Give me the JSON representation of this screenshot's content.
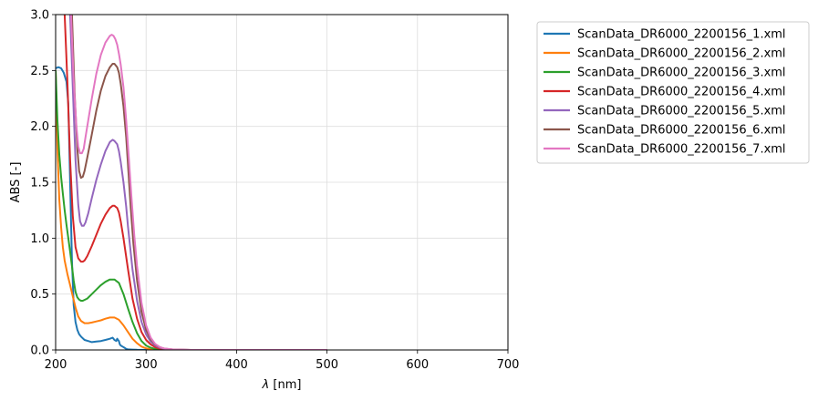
{
  "chart_data": {
    "type": "line",
    "xlabel_symbol": "λ",
    "xlabel_unit": " [nm]",
    "ylabel": "ABS [-]",
    "xlim": [
      200,
      700
    ],
    "ylim": [
      0,
      3.0
    ],
    "grid": true,
    "legend_placement": "outside-upper-right",
    "x_ticks": [
      "200",
      "300",
      "400",
      "500",
      "600",
      "700"
    ],
    "y_ticks": [
      "0.0",
      "0.5",
      "1.0",
      "1.5",
      "2.0",
      "2.5",
      "3.0"
    ],
    "series": [
      {
        "name": "ScanData_DR6000_2200156_1.xml",
        "color": "#1f77b4",
        "x": [
          200,
          203,
          206,
          209,
          212,
          214,
          216,
          218,
          220,
          222,
          224,
          226,
          228,
          232,
          236,
          240,
          245,
          250,
          255,
          260,
          263,
          265,
          267,
          268,
          269,
          270,
          271,
          272,
          274,
          276,
          278,
          280,
          285,
          290,
          300,
          350,
          400,
          500
        ],
        "y": [
          2.52,
          2.53,
          2.52,
          2.48,
          2.4,
          2.2,
          1.5,
          0.8,
          0.4,
          0.25,
          0.18,
          0.14,
          0.12,
          0.09,
          0.08,
          0.07,
          0.075,
          0.08,
          0.09,
          0.1,
          0.11,
          0.09,
          0.08,
          0.1,
          0.09,
          0.08,
          0.05,
          0.04,
          0.03,
          0.02,
          0.01,
          0.005,
          0.003,
          0.002,
          0.001,
          0.0,
          0.0,
          0.0
        ]
      },
      {
        "name": "ScanData_DR6000_2200156_2.xml",
        "color": "#ff7f0e",
        "x": [
          200,
          202,
          204,
          206,
          208,
          210,
          213,
          216,
          219,
          222,
          225,
          228,
          232,
          236,
          240,
          245,
          250,
          255,
          260,
          265,
          270,
          275,
          280,
          285,
          290,
          295,
          300,
          305,
          310,
          320,
          340,
          400,
          500
        ],
        "y": [
          2.5,
          1.8,
          1.35,
          1.1,
          0.92,
          0.8,
          0.68,
          0.58,
          0.48,
          0.38,
          0.3,
          0.26,
          0.24,
          0.24,
          0.245,
          0.255,
          0.265,
          0.28,
          0.29,
          0.29,
          0.27,
          0.22,
          0.16,
          0.1,
          0.06,
          0.03,
          0.015,
          0.008,
          0.004,
          0.002,
          0.0,
          0.0,
          0.0
        ]
      },
      {
        "name": "ScanData_DR6000_2200156_3.xml",
        "color": "#2ca02c",
        "x": [
          200,
          202,
          204,
          206,
          208,
          210,
          212,
          214,
          216,
          218,
          220,
          222,
          224,
          226,
          228,
          230,
          235,
          240,
          245,
          250,
          255,
          260,
          265,
          270,
          275,
          280,
          285,
          290,
          295,
          300,
          305,
          310,
          320,
          340,
          400,
          500
        ],
        "y": [
          2.5,
          2.05,
          1.75,
          1.55,
          1.4,
          1.25,
          1.12,
          1.0,
          0.88,
          0.75,
          0.62,
          0.52,
          0.47,
          0.45,
          0.44,
          0.44,
          0.46,
          0.5,
          0.54,
          0.58,
          0.61,
          0.63,
          0.63,
          0.6,
          0.5,
          0.37,
          0.25,
          0.15,
          0.08,
          0.04,
          0.02,
          0.01,
          0.004,
          0.0,
          0.0,
          0.0
        ]
      },
      {
        "name": "ScanData_DR6000_2200156_4.xml",
        "color": "#d62728",
        "x": [
          210,
          213,
          216,
          219,
          222,
          225,
          228,
          230,
          232,
          235,
          240,
          245,
          250,
          255,
          260,
          263,
          265,
          268,
          270,
          272,
          275,
          280,
          285,
          290,
          295,
          300,
          305,
          310,
          315,
          320,
          330,
          350,
          400,
          500
        ],
        "y": [
          3.0,
          2.4,
          1.7,
          1.2,
          0.92,
          0.82,
          0.79,
          0.79,
          0.8,
          0.84,
          0.93,
          1.03,
          1.13,
          1.21,
          1.27,
          1.29,
          1.29,
          1.27,
          1.23,
          1.15,
          1.0,
          0.72,
          0.46,
          0.28,
          0.16,
          0.09,
          0.05,
          0.025,
          0.012,
          0.006,
          0.002,
          0.0,
          0.0,
          0.0
        ]
      },
      {
        "name": "ScanData_DR6000_2200156_5.xml",
        "color": "#9467bd",
        "x": [
          216,
          219,
          222,
          225,
          227,
          229,
          231,
          233,
          236,
          240,
          245,
          250,
          255,
          260,
          263,
          265,
          268,
          270,
          272,
          275,
          278,
          280,
          285,
          290,
          295,
          300,
          305,
          310,
          315,
          320,
          330,
          350,
          400,
          500
        ],
        "y": [
          3.0,
          2.35,
          1.7,
          1.3,
          1.15,
          1.11,
          1.11,
          1.14,
          1.22,
          1.36,
          1.52,
          1.66,
          1.78,
          1.86,
          1.88,
          1.87,
          1.84,
          1.78,
          1.68,
          1.5,
          1.28,
          1.1,
          0.72,
          0.44,
          0.25,
          0.14,
          0.075,
          0.04,
          0.02,
          0.01,
          0.003,
          0.0,
          0.0,
          0.0
        ]
      },
      {
        "name": "ScanData_DR6000_2200156_6.xml",
        "color": "#8c564b",
        "x": [
          218,
          221,
          224,
          226,
          228,
          230,
          232,
          235,
          240,
          245,
          250,
          255,
          260,
          263,
          265,
          268,
          270,
          272,
          275,
          278,
          280,
          283,
          286,
          290,
          295,
          300,
          305,
          310,
          315,
          320,
          330,
          350,
          400,
          500
        ],
        "y": [
          3.0,
          2.3,
          1.8,
          1.6,
          1.54,
          1.55,
          1.6,
          1.72,
          1.93,
          2.14,
          2.32,
          2.45,
          2.53,
          2.56,
          2.56,
          2.53,
          2.48,
          2.38,
          2.18,
          1.9,
          1.65,
          1.28,
          0.95,
          0.62,
          0.34,
          0.18,
          0.095,
          0.05,
          0.025,
          0.012,
          0.004,
          0.0,
          0.0,
          0.0
        ]
      },
      {
        "name": "ScanData_DR6000_2200156_7.xml",
        "color": "#e377c2",
        "x": [
          217,
          220,
          223,
          225,
          227,
          229,
          231,
          233,
          236,
          240,
          245,
          250,
          255,
          260,
          262,
          264,
          266,
          268,
          270,
          272,
          275,
          278,
          281,
          284,
          287,
          290,
          295,
          300,
          305,
          310,
          315,
          320,
          330,
          350,
          400,
          500
        ],
        "y": [
          3.0,
          2.4,
          2.0,
          1.82,
          1.76,
          1.76,
          1.8,
          1.9,
          2.05,
          2.25,
          2.47,
          2.64,
          2.75,
          2.81,
          2.82,
          2.81,
          2.78,
          2.73,
          2.65,
          2.55,
          2.35,
          2.05,
          1.7,
          1.35,
          1.02,
          0.75,
          0.42,
          0.22,
          0.11,
          0.055,
          0.027,
          0.013,
          0.004,
          0.0,
          0.0,
          0.0
        ]
      }
    ]
  }
}
